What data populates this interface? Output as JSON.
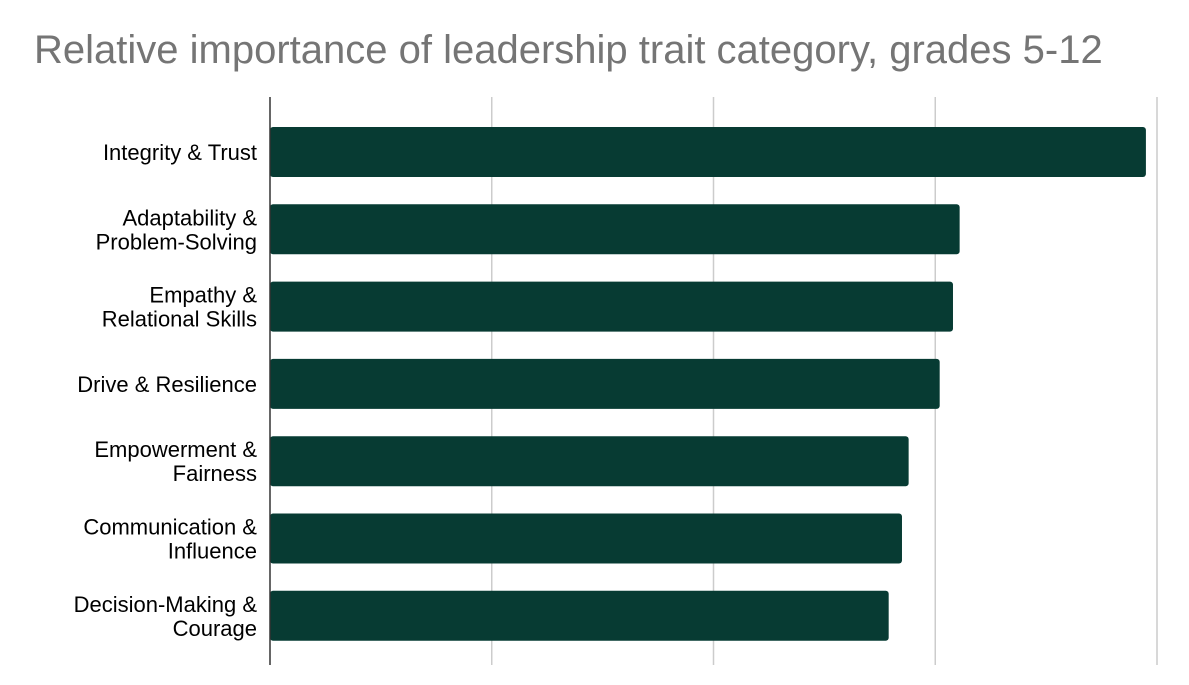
{
  "chart_data": {
    "type": "bar",
    "orientation": "horizontal",
    "title": "Relative importance of leadership trait category, grades 5-12",
    "xlabel": "",
    "ylabel": "",
    "categories": [
      [
        "Integrity & Trust"
      ],
      [
        "Adaptability &",
        "Problem-Solving"
      ],
      [
        "Empathy &",
        "Relational Skills"
      ],
      [
        "Drive & Resilience"
      ],
      [
        "Empowerment &",
        "Fairness"
      ],
      [
        "Communication &",
        "Influence"
      ],
      [
        "Decision-Making &",
        "Courage"
      ]
    ],
    "values": [
      3.95,
      3.11,
      3.08,
      3.02,
      2.88,
      2.85,
      2.79
    ],
    "xlim": [
      0,
      4
    ],
    "gridlines_x": [
      0,
      1,
      2,
      3,
      4
    ],
    "tick_labels_shown": false,
    "grid": true,
    "legend": "none",
    "bar_color": "#073B33",
    "grid_color": "#cccccc",
    "axis_color": "#333333",
    "title_color": "#757575"
  }
}
